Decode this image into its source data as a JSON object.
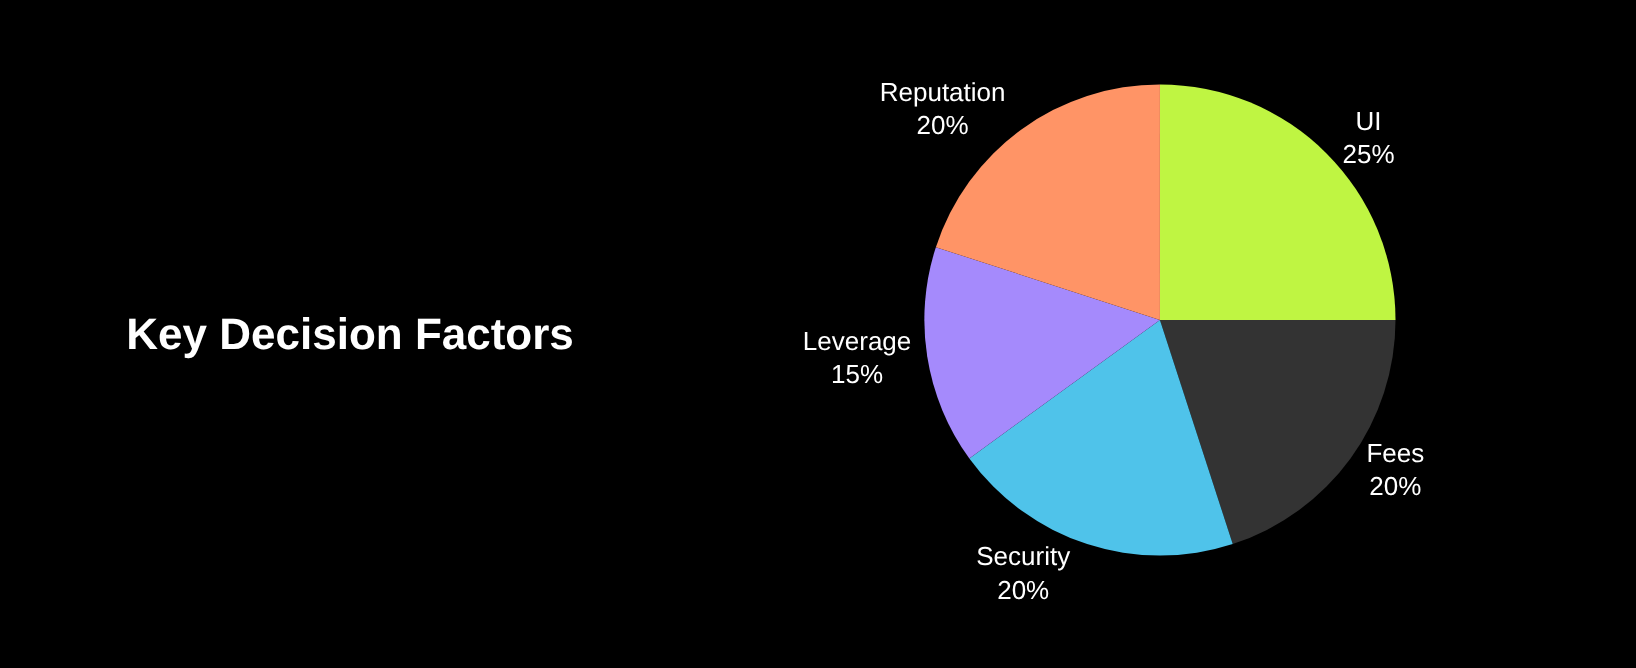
{
  "chart_data": {
    "type": "pie",
    "title": "Key Decision Factors",
    "categories": [
      "UI",
      "Fees",
      "Security",
      "Leverage",
      "Reputation"
    ],
    "values": [
      25,
      20,
      20,
      15,
      20
    ],
    "value_labels": [
      "25%",
      "20%",
      "20%",
      "15%",
      "20%"
    ],
    "colors": [
      "#bff542",
      "#333333",
      "#4fc3ea",
      "#a58afc",
      "#ff9466"
    ],
    "legend": false
  }
}
